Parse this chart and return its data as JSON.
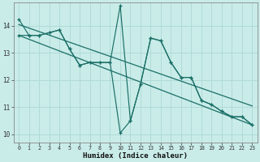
{
  "title": "",
  "xlabel": "Humidex (Indice chaleur)",
  "ylabel": "",
  "bg_color": "#c9ece9",
  "grid_color": "#b0dbd8",
  "line_color": "#1a6e66",
  "xlim": [
    -0.5,
    23.5
  ],
  "ylim": [
    9.7,
    14.85
  ],
  "xticks": [
    0,
    1,
    2,
    3,
    4,
    5,
    6,
    7,
    8,
    9,
    10,
    11,
    12,
    13,
    14,
    15,
    16,
    17,
    18,
    19,
    20,
    21,
    22,
    23
  ],
  "yticks": [
    10,
    11,
    12,
    13,
    14
  ],
  "series1_x": [
    0,
    1,
    2,
    3,
    4,
    5,
    6,
    7,
    8,
    9,
    10,
    11,
    12,
    13,
    14,
    15,
    16,
    17,
    18,
    19,
    20,
    21,
    22,
    23
  ],
  "series1_y": [
    14.25,
    13.65,
    13.65,
    13.75,
    13.85,
    13.15,
    12.55,
    12.65,
    12.65,
    12.65,
    14.75,
    10.5,
    11.85,
    13.55,
    13.45,
    12.65,
    12.1,
    12.1,
    11.25,
    11.1,
    10.85,
    10.65,
    10.65,
    10.35
  ],
  "series2_x": [
    0,
    1,
    2,
    3,
    4,
    5,
    6,
    7,
    8,
    9,
    10,
    11,
    12,
    13,
    14,
    15,
    16,
    17,
    18,
    19,
    20,
    21,
    22,
    23
  ],
  "series2_y": [
    13.65,
    13.65,
    13.65,
    13.75,
    13.85,
    13.15,
    12.55,
    12.65,
    12.65,
    12.65,
    10.05,
    10.5,
    11.85,
    13.55,
    13.45,
    12.65,
    12.1,
    12.1,
    11.25,
    11.1,
    10.85,
    10.65,
    10.65,
    10.35
  ],
  "trend1_x": [
    0,
    23
  ],
  "trend1_y": [
    14.05,
    11.05
  ],
  "trend2_x": [
    0,
    23
  ],
  "trend2_y": [
    13.65,
    10.35
  ],
  "marker_size": 3.5
}
